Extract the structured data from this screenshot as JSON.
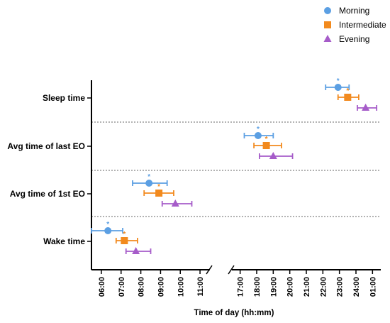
{
  "chart_data": {
    "type": "scatter",
    "title": "",
    "xlabel": "Time of day (hh:mm)",
    "ylabel": "",
    "x_axis_break": true,
    "x_segments": [
      {
        "range": [
          "05:30",
          "11:30"
        ],
        "ticks": [
          "06:00",
          "07:00",
          "08:00",
          "09:00",
          "10:00",
          "11:00"
        ]
      },
      {
        "range": [
          "16:30",
          "01:30"
        ],
        "ticks": [
          "17:00",
          "18:00",
          "19:00",
          "20:00",
          "21:00",
          "22:00",
          "23:00",
          "24:00",
          "01:00"
        ]
      }
    ],
    "categories": [
      "Sleep time",
      "Avg time of last EO",
      "Avg time of 1st EO",
      "Wake time"
    ],
    "legend_position": "top-right",
    "series": [
      {
        "name": "Morning",
        "color": "#5B9FE3",
        "marker": "circle",
        "points": [
          {
            "category": "Sleep time",
            "x": "22:55",
            "err_low": "22:10",
            "err_high": "23:35",
            "significant": true
          },
          {
            "category": "Avg time of last EO",
            "x": "18:05",
            "err_low": "17:15",
            "err_high": "19:00",
            "significant": true
          },
          {
            "category": "Avg time of 1st EO",
            "x": "08:25",
            "err_low": "07:35",
            "err_high": "09:20",
            "significant": true
          },
          {
            "category": "Wake time",
            "x": "06:20",
            "err_low": "05:30",
            "err_high": "07:05",
            "significant": true
          }
        ]
      },
      {
        "name": "Intermediate",
        "color": "#F28A1E",
        "marker": "square",
        "points": [
          {
            "category": "Sleep time",
            "x": "23:30",
            "err_low": "22:55",
            "err_high": "24:10",
            "significant": true
          },
          {
            "category": "Avg time of last EO",
            "x": "18:35",
            "err_low": "17:50",
            "err_high": "19:30",
            "significant": true
          },
          {
            "category": "Avg time of 1st EO",
            "x": "08:55",
            "err_low": "08:10",
            "err_high": "09:40",
            "significant": true
          },
          {
            "category": "Wake time",
            "x": "07:10",
            "err_low": "06:45",
            "err_high": "07:50",
            "significant": true
          }
        ]
      },
      {
        "name": "Evening",
        "color": "#A65CC9",
        "marker": "triangle",
        "points": [
          {
            "category": "Sleep time",
            "x": "24:35",
            "err_low": "24:05",
            "err_high": "25:15",
            "significant": false
          },
          {
            "category": "Avg time of last EO",
            "x": "19:00",
            "err_low": "18:10",
            "err_high": "20:10",
            "significant": false
          },
          {
            "category": "Avg time of 1st EO",
            "x": "09:45",
            "err_low": "09:05",
            "err_high": "10:35",
            "significant": false
          },
          {
            "category": "Wake time",
            "x": "07:45",
            "err_low": "07:15",
            "err_high": "08:30",
            "significant": false
          }
        ]
      }
    ],
    "significance_marker": "*"
  }
}
